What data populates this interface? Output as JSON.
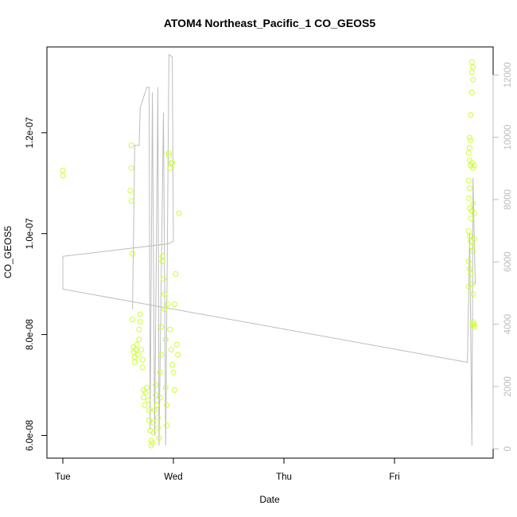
{
  "chart_data": {
    "type": "line+scatter",
    "title": "ATOM4 Northeast_Pacific_1 CO_GEOS5",
    "xlabel": "Date",
    "ylabel": "CO_GEOS5",
    "x_ticks": [
      "Tue",
      "Wed",
      "Thu",
      "Fri"
    ],
    "x_domain_days": [
      -0.1,
      3.93
    ],
    "y_left": {
      "range": [
        5.55e-08,
        1.37e-07
      ],
      "ticks": [
        6e-08,
        8e-08,
        1e-07,
        1.2e-07
      ],
      "tick_labels": [
        "6.0e-08",
        "8.0e-08",
        "1.0e-07",
        "1.2e-07"
      ]
    },
    "y_right": {
      "range": [
        -300,
        12900
      ],
      "ticks": [
        0,
        2000,
        4000,
        6000,
        8000,
        10000,
        12000
      ],
      "tick_labels": [
        "0",
        "2000",
        "4000",
        "6000",
        "8000",
        "10000",
        "12000"
      ],
      "color": "#bdbdbd"
    },
    "scatter_color": "#ccff33",
    "line_color": "#bdbdbd",
    "scatter_points": [
      [
        0.0,
        1.125e-07
      ],
      [
        0.0,
        1.115e-07
      ],
      [
        0.62,
        1.175e-07
      ],
      [
        0.62,
        1.13e-07
      ],
      [
        0.61,
        1.085e-07
      ],
      [
        0.62,
        1.065e-07
      ],
      [
        0.63,
        9.6e-08
      ],
      [
        0.63,
        8.3e-08
      ],
      [
        0.64,
        7.75e-08
      ],
      [
        0.64,
        7.65e-08
      ],
      [
        0.65,
        7.55e-08
      ],
      [
        0.65,
        7.45e-08
      ],
      [
        0.66,
        7.7e-08
      ],
      [
        0.67,
        7.8e-08
      ],
      [
        0.68,
        7.6e-08
      ],
      [
        0.69,
        7.9e-08
      ],
      [
        0.69,
        8.1e-08
      ],
      [
        0.7,
        8.25e-08
      ],
      [
        0.7,
        8.4e-08
      ],
      [
        0.71,
        7.7e-08
      ],
      [
        0.72,
        7.5e-08
      ],
      [
        0.72,
        7.35e-08
      ],
      [
        0.73,
        6.9e-08
      ],
      [
        0.73,
        6.75e-08
      ],
      [
        0.74,
        6.6e-08
      ],
      [
        0.75,
        6.85e-08
      ],
      [
        0.76,
        6.95e-08
      ],
      [
        0.77,
        6.7e-08
      ],
      [
        0.78,
        6.5e-08
      ],
      [
        0.78,
        6.3e-08
      ],
      [
        0.79,
        6.1e-08
      ],
      [
        0.8,
        5.9e-08
      ],
      [
        0.8,
        5.8e-08
      ],
      [
        0.81,
        5.85e-08
      ],
      [
        0.82,
        6.05e-08
      ],
      [
        0.82,
        6.25e-08
      ],
      [
        0.83,
        6.5e-08
      ],
      [
        0.84,
        6.8e-08
      ],
      [
        0.84,
        7e-08
      ],
      [
        0.85,
        6.6e-08
      ],
      [
        0.86,
        6.35e-08
      ],
      [
        0.86,
        6.15e-08
      ],
      [
        0.87,
        5.95e-08
      ],
      [
        0.88,
        6.75e-08
      ],
      [
        0.88,
        7.25e-08
      ],
      [
        0.89,
        7.6e-08
      ],
      [
        0.89,
        8.15e-08
      ],
      [
        0.9,
        9.45e-08
      ],
      [
        0.9,
        9.55e-08
      ],
      [
        0.91,
        9.1e-08
      ],
      [
        0.92,
        8.8e-08
      ],
      [
        0.92,
        8.5e-08
      ],
      [
        0.93,
        7.9e-08
      ],
      [
        0.93,
        6.95e-08
      ],
      [
        0.94,
        6.6e-08
      ],
      [
        0.94,
        6.2e-08
      ],
      [
        0.95,
        8.6e-08
      ],
      [
        0.96,
        1.155e-07
      ],
      [
        0.96,
        1.16e-07
      ],
      [
        0.97,
        1.13e-07
      ],
      [
        0.97,
        8.1e-08
      ],
      [
        0.98,
        7.7e-08
      ],
      [
        0.99,
        7.4e-08
      ],
      [
        1.0,
        7.25e-08
      ],
      [
        1.01,
        6.9e-08
      ],
      [
        1.01,
        8.6e-08
      ],
      [
        1.02,
        9.2e-08
      ],
      [
        1.03,
        7.8e-08
      ],
      [
        1.04,
        7.6e-08
      ],
      [
        0.98,
        1.14e-07
      ],
      [
        0.99,
        1.14e-07
      ],
      [
        1.05,
        1.04e-07
      ],
      [
        3.7,
        1.34e-07
      ],
      [
        3.71,
        1.33e-07
      ],
      [
        3.7,
        1.32e-07
      ],
      [
        3.71,
        1.305e-07
      ],
      [
        3.7,
        1.28e-07
      ],
      [
        3.69,
        1.235e-07
      ],
      [
        3.68,
        1.19e-07
      ],
      [
        3.69,
        1.185e-07
      ],
      [
        3.68,
        1.17e-07
      ],
      [
        3.67,
        1.16e-07
      ],
      [
        3.68,
        1.145e-07
      ],
      [
        3.69,
        1.135e-07
      ],
      [
        3.7,
        1.14e-07
      ],
      [
        3.71,
        1.13e-07
      ],
      [
        3.72,
        1.135e-07
      ],
      [
        3.67,
        1.105e-07
      ],
      [
        3.68,
        1.09e-07
      ],
      [
        3.67,
        1.07e-07
      ],
      [
        3.68,
        1.05e-07
      ],
      [
        3.69,
        1.03e-07
      ],
      [
        3.7,
        1.045e-07
      ],
      [
        3.71,
        1.06e-07
      ],
      [
        3.72,
        1.04e-07
      ],
      [
        3.67,
        1.005e-07
      ],
      [
        3.68,
        9.95e-08
      ],
      [
        3.69,
        9.85e-08
      ],
      [
        3.7,
        9.75e-08
      ],
      [
        3.71,
        9.65e-08
      ],
      [
        3.72,
        9.9e-08
      ],
      [
        3.67,
        9.45e-08
      ],
      [
        3.68,
        9.3e-08
      ],
      [
        3.69,
        9.2e-08
      ],
      [
        3.7,
        9e-08
      ],
      [
        3.71,
        8.8e-08
      ],
      [
        3.67,
        8.95e-08
      ],
      [
        3.71,
        8.2e-08
      ],
      [
        3.72,
        8.15e-08
      ],
      [
        3.71,
        8.25e-08
      ],
      [
        3.72,
        8.2e-08
      ]
    ],
    "line_points": [
      [
        0.0,
        9.55e-08
      ],
      [
        0.0,
        8.9e-08
      ],
      [
        3.66,
        7.45e-08
      ],
      [
        3.68,
        1e-07
      ],
      [
        3.7,
        5.8e-08
      ],
      [
        3.71,
        1.11e-07
      ],
      [
        3.73,
        9e-08
      ]
    ],
    "line_segments_overlay": [
      [
        [
          0.63,
          8.5e-08
        ],
        [
          0.65,
          1.175e-07
        ],
        [
          0.69,
          1.175e-07
        ],
        [
          0.7,
          1.25e-07
        ],
        [
          0.76,
          1.29e-07
        ],
        [
          0.78,
          1.29e-07
        ],
        [
          0.79,
          6.1e-08
        ],
        [
          0.81,
          1.28e-07
        ],
        [
          0.83,
          6e-08
        ],
        [
          0.86,
          1.29e-07
        ],
        [
          0.87,
          5.8e-08
        ],
        [
          0.91,
          1.24e-07
        ],
        [
          0.93,
          5.8e-08
        ],
        [
          0.96,
          1.355e-07
        ],
        [
          0.99,
          1.35e-07
        ],
        [
          1.0,
          9.85e-08
        ],
        [
          0.96,
          9.8e-08
        ],
        [
          0.0,
          9.55e-08
        ]
      ]
    ]
  }
}
